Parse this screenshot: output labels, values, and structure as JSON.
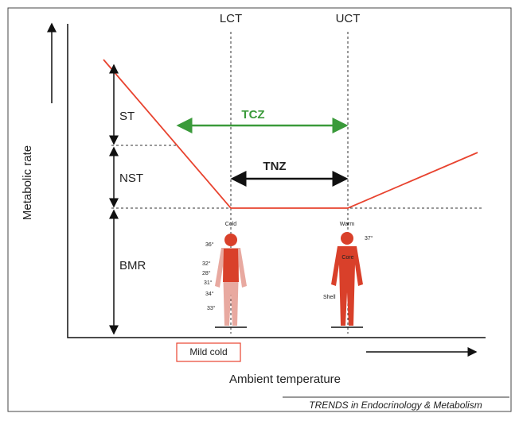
{
  "axes": {
    "y_label": "Metabolic rate",
    "x_label": "Ambient temperature"
  },
  "thresholds": {
    "lower": "LCT",
    "upper": "UCT"
  },
  "components": {
    "shivering": "ST",
    "non_shivering": "NST",
    "basal": "BMR"
  },
  "zones": {
    "comfort": "TCZ",
    "thermoneutral": "TNZ"
  },
  "figures": {
    "cold": {
      "label": "Cold",
      "temps": [
        "36°",
        "32°",
        "28°",
        "31°",
        "34°",
        "33°"
      ]
    },
    "warm": {
      "label": "Warm",
      "temps": [
        "37°"
      ],
      "core": "Core",
      "shell": "Shell"
    }
  },
  "mild_cold": "Mild cold",
  "source": "TRENDS in Endocrinology & Metabolism"
}
